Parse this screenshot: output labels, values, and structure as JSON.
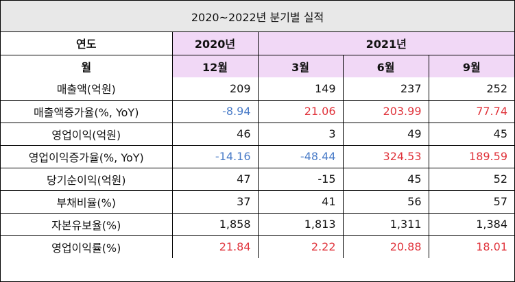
{
  "title": "2020~2022년 분기별 실적",
  "header": {
    "year_label": "연도",
    "year_2020": "2020년",
    "year_2021": "2021년",
    "month_label": "월",
    "months": [
      "12월",
      "3월",
      "6월",
      "9월"
    ]
  },
  "colors": {
    "header_purple": "#f1d8f6",
    "title_bg": "#e8e8e8",
    "negative_blue": "#4a7cc8",
    "positive_red": "#e0333b"
  },
  "rows": [
    {
      "label": "매출액(억원)",
      "values": [
        "209",
        "149",
        "237",
        "252"
      ],
      "colors": [
        "",
        "",
        "",
        ""
      ]
    },
    {
      "label": "매출액증가율(%, YoY)",
      "values": [
        "-8.94",
        "21.06",
        "203.99",
        "77.74"
      ],
      "colors": [
        "blue",
        "red",
        "red",
        "red"
      ]
    },
    {
      "label": "영업이익(억원)",
      "values": [
        "46",
        "3",
        "49",
        "45"
      ],
      "colors": [
        "",
        "",
        "",
        ""
      ]
    },
    {
      "label": "영업이익증가율(%, YoY)",
      "values": [
        "-14.16",
        "-48.44",
        "324.53",
        "189.59"
      ],
      "colors": [
        "blue",
        "blue",
        "red",
        "red"
      ]
    },
    {
      "label": "당기순이익(억원)",
      "values": [
        "47",
        "-15",
        "45",
        "52"
      ],
      "colors": [
        "",
        "",
        "",
        ""
      ]
    },
    {
      "label": "부채비율(%)",
      "values": [
        "37",
        "41",
        "56",
        "57"
      ],
      "colors": [
        "",
        "",
        "",
        ""
      ]
    },
    {
      "label": "자본유보율(%)",
      "values": [
        "1,858",
        "1,813",
        "1,311",
        "1,384"
      ],
      "colors": [
        "",
        "",
        "",
        ""
      ]
    },
    {
      "label": "영업이익률(%)",
      "values": [
        "21.84",
        "2.22",
        "20.88",
        "18.01"
      ],
      "colors": [
        "red",
        "red",
        "red",
        "red"
      ]
    }
  ]
}
